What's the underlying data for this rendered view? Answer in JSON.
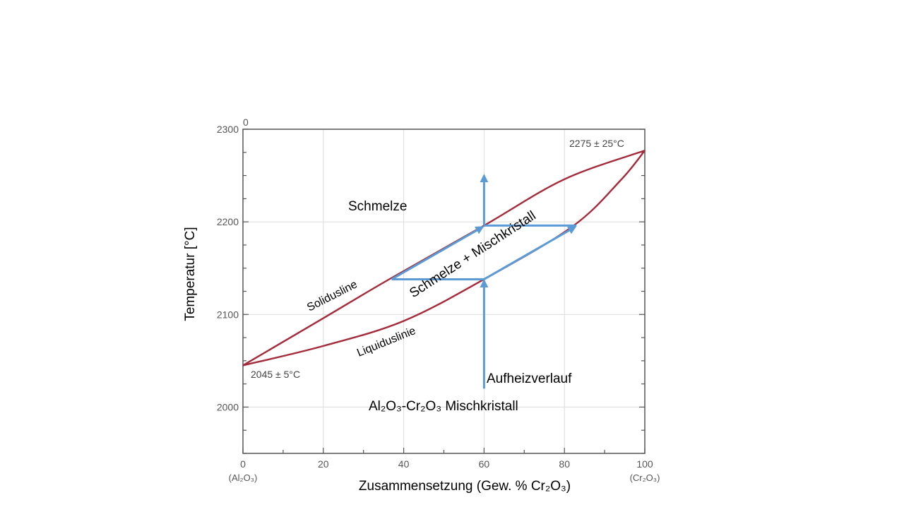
{
  "chart_data": {
    "type": "line",
    "title": "",
    "xlabel": "Zusammensetzung (Gew. % Cr₂O₃)",
    "ylabel": "Temperatur  [°C]",
    "xlim": [
      0,
      100
    ],
    "ylim": [
      1950,
      2300
    ],
    "x_ticks": [
      0,
      20,
      40,
      60,
      80,
      100
    ],
    "y_ticks": [
      2000,
      2100,
      2200,
      2300
    ],
    "x_end_labels": {
      "left": "(Al₂O₃)",
      "right": "(Cr₂O₃)"
    },
    "top_axis_zero_label": "0",
    "grid": true,
    "series": [
      {
        "key": "solidus",
        "color": "#a52a3a",
        "points": [
          [
            0,
            2045
          ],
          [
            20,
            2096
          ],
          [
            36,
            2137
          ],
          [
            60,
            2196
          ],
          [
            80,
            2246
          ],
          [
            100,
            2277
          ]
        ]
      },
      {
        "key": "liquidus",
        "color": "#a52a3a",
        "points": [
          [
            0,
            2045
          ],
          [
            20,
            2066
          ],
          [
            40,
            2093
          ],
          [
            60,
            2138
          ],
          [
            82,
            2195
          ],
          [
            94,
            2245
          ],
          [
            100,
            2277
          ]
        ]
      }
    ],
    "annotations": {
      "point_left": "2045 ± 5°C",
      "point_right": "2275 ± 25°C",
      "region_melt": "Schmelze",
      "region_two_phase": "Schmelze + Mischkristall",
      "solidus_label": "Solidusline",
      "liquidus_label": "Liquiduslinie",
      "heating_label": "Aufheizverlauf",
      "solid_region": "Al₂O₃-Cr₂O₃ Mischkristall"
    },
    "heating_path": {
      "color": "#5b9bd5",
      "composition": 60,
      "start_temp": 2020,
      "end_temp": 2250,
      "tie_line_low": {
        "temp": 2138,
        "x_from": 37,
        "x_to": 60
      },
      "tie_line_high": {
        "temp": 2196,
        "x_from": 60,
        "x_to": 83
      }
    }
  }
}
